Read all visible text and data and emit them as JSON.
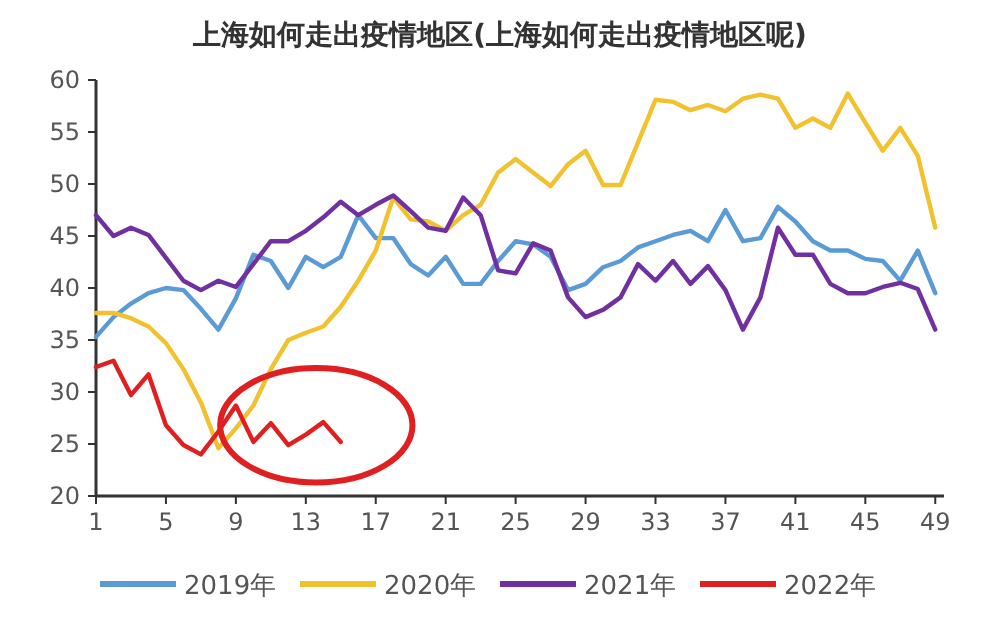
{
  "chart_data": {
    "type": "line",
    "title": "上海如何走出疫情地区(上海如何走出疫情地区呢)",
    "x": [
      1,
      2,
      3,
      4,
      5,
      6,
      7,
      8,
      9,
      10,
      11,
      12,
      13,
      14,
      15,
      16,
      17,
      18,
      19,
      20,
      21,
      22,
      23,
      24,
      25,
      26,
      27,
      28,
      29,
      30,
      31,
      32,
      33,
      34,
      35,
      36,
      37,
      38,
      39,
      40,
      41,
      42,
      43,
      44,
      45,
      46,
      47,
      48,
      49
    ],
    "series": [
      {
        "name": "2019年",
        "color": "#5b9bd5",
        "values": [
          35.3,
          37.2,
          38.5,
          39.5,
          40,
          39.8,
          38,
          36,
          39,
          43.2,
          42.6,
          40,
          43,
          42,
          43,
          47,
          44.8,
          44.8,
          42.3,
          41.2,
          43,
          40.4,
          40.4,
          42.6,
          44.5,
          44.2,
          43,
          39.8,
          40.4,
          42,
          42.6,
          43.9,
          44.5,
          45.1,
          45.5,
          44.5,
          47.5,
          44.5,
          44.8,
          47.8,
          46.4,
          44.5,
          43.6,
          43.6,
          42.8,
          42.6,
          40.7,
          43.6,
          39.5
        ]
      },
      {
        "name": "2020年",
        "color": "#f2c12e",
        "values": [
          37.6,
          37.6,
          37.1,
          36.3,
          34.7,
          32.2,
          29,
          24.6,
          26.5,
          28.7,
          32.2,
          35,
          35.7,
          36.3,
          38.2,
          40.7,
          43.6,
          48.7,
          46.6,
          46.4,
          45.5,
          47,
          48,
          51.1,
          52.4,
          51.1,
          49.8,
          51.9,
          53.2,
          49.9,
          49.9,
          54,
          58.1,
          57.9,
          57.1,
          57.6,
          57,
          58.2,
          58.6,
          58.2,
          55.4,
          56.3,
          55.4,
          58.7,
          55.9,
          53.2,
          55.4,
          52.7,
          45.8
        ]
      },
      {
        "name": "2021年",
        "color": "#7030a0",
        "values": [
          47,
          45,
          45.8,
          45.1,
          42.9,
          40.7,
          39.8,
          40.7,
          40.1,
          42.3,
          44.5,
          44.5,
          45.5,
          46.8,
          48.3,
          47,
          48,
          48.9,
          47.4,
          45.8,
          45.5,
          48.7,
          47,
          41.7,
          41.4,
          44.3,
          43.6,
          39.1,
          37.2,
          37.9,
          39.1,
          42.3,
          40.7,
          42.6,
          40.4,
          42.1,
          39.8,
          36,
          39.1,
          45.8,
          43.2,
          43.2,
          40.4,
          39.5,
          39.5,
          40.1,
          40.5,
          39.9,
          36
        ]
      },
      {
        "name": "2022年",
        "color": "#e02020",
        "x": [
          1,
          2,
          3,
          4,
          5,
          6,
          7,
          8,
          9,
          10,
          11,
          12,
          13,
          14,
          15
        ],
        "values": [
          32.4,
          33,
          29.7,
          31.7,
          26.8,
          24.9,
          24,
          26.2,
          28.7,
          25.2,
          27,
          24.9,
          25.9,
          27.1,
          25.2
        ]
      }
    ],
    "xlim": [
      1,
      49.5
    ],
    "xticks": [
      1,
      5,
      9,
      13,
      17,
      21,
      25,
      29,
      33,
      37,
      41,
      45,
      49
    ],
    "ylim": [
      20,
      60
    ],
    "yticks": [
      20,
      25,
      30,
      35,
      40,
      45,
      50,
      55,
      60
    ],
    "legend": "bottom"
  }
}
